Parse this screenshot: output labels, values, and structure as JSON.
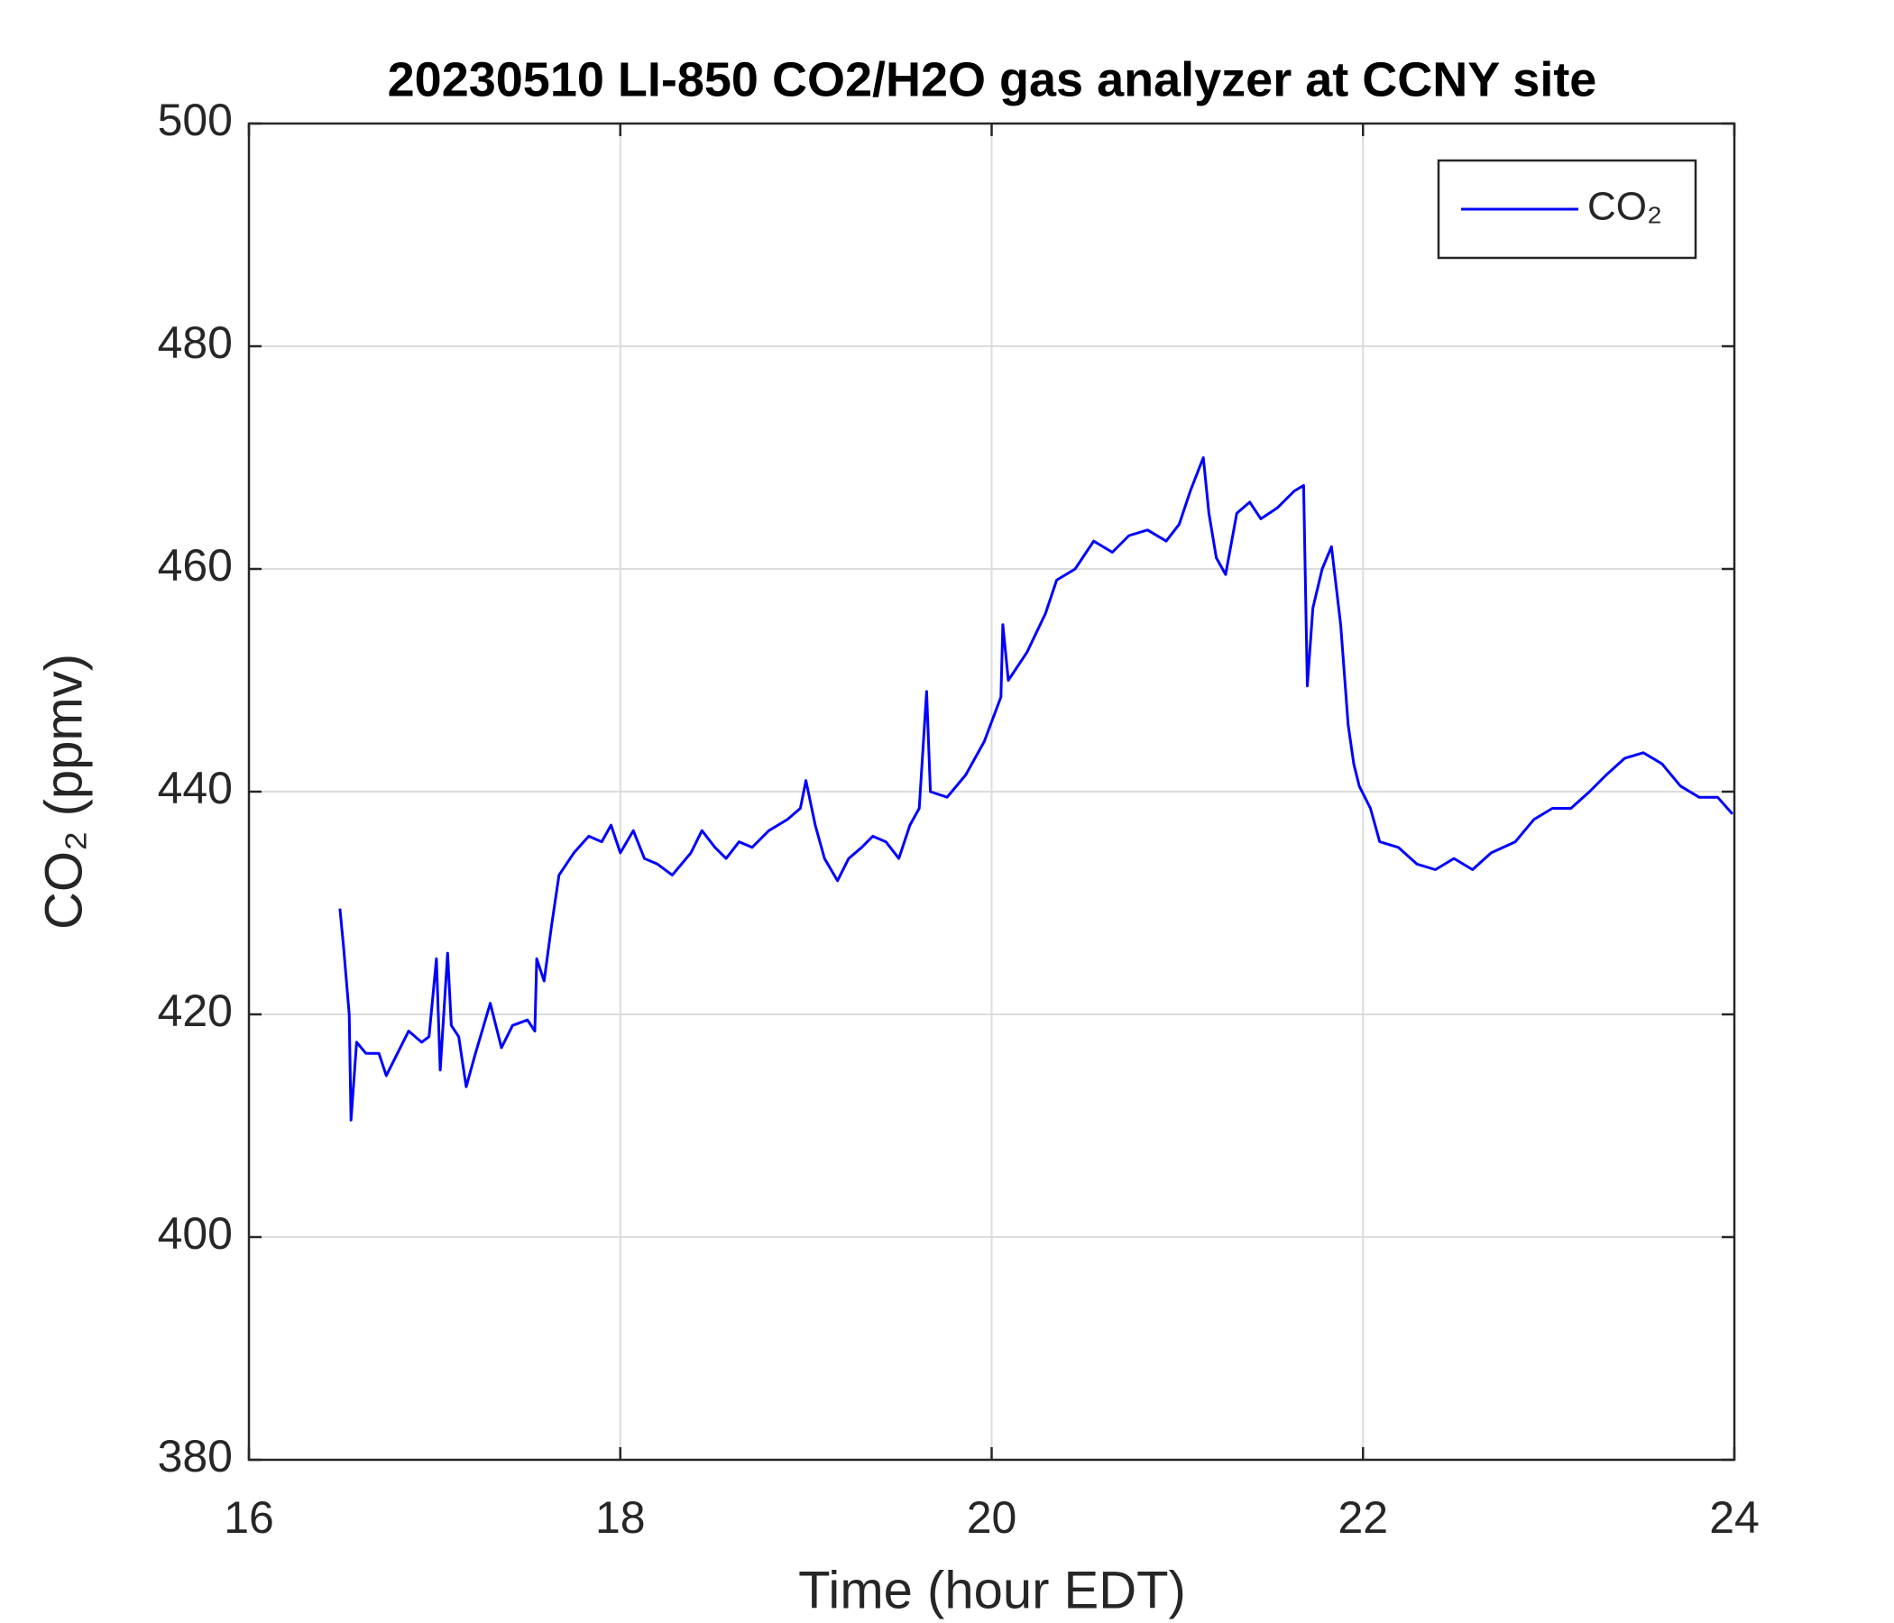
{
  "chart_data": {
    "type": "line",
    "title": "20230510 LI-850 CO2/H2O gas analyzer at CCNY site",
    "x_label": "Time (hour EDT)",
    "y_label": "CO₂ (ppmv)",
    "x": [
      16.49,
      16.51,
      16.54,
      16.55,
      16.58,
      16.63,
      16.7,
      16.74,
      16.8,
      16.86,
      16.93,
      16.97,
      17.01,
      17.03,
      17.07,
      17.09,
      17.13,
      17.17,
      17.22,
      17.3,
      17.36,
      17.42,
      17.5,
      17.54,
      17.55,
      17.59,
      17.63,
      17.67,
      17.75,
      17.83,
      17.9,
      17.95,
      18.0,
      18.07,
      18.13,
      18.2,
      18.28,
      18.38,
      18.44,
      18.51,
      18.57,
      18.64,
      18.71,
      18.8,
      18.9,
      18.97,
      19.0,
      19.05,
      19.1,
      19.17,
      19.23,
      19.3,
      19.36,
      19.43,
      19.5,
      19.56,
      19.61,
      19.65,
      19.67,
      19.76,
      19.86,
      19.96,
      20.05,
      20.06,
      20.09,
      20.19,
      20.29,
      20.35,
      20.45,
      20.55,
      20.65,
      20.74,
      20.84,
      20.94,
      21.01,
      21.07,
      21.14,
      21.17,
      21.21,
      21.26,
      21.32,
      21.39,
      21.45,
      21.54,
      21.63,
      21.68,
      21.7,
      21.73,
      21.78,
      21.83,
      21.88,
      21.92,
      21.95,
      21.98,
      22.04,
      22.09,
      22.19,
      22.29,
      22.39,
      22.49,
      22.59,
      22.69,
      22.82,
      22.92,
      23.02,
      23.12,
      23.22,
      23.31,
      23.41,
      23.51,
      23.61,
      23.71,
      23.81,
      23.91,
      23.99
    ],
    "series": [
      {
        "name": "CO₂",
        "color": "#0000ff",
        "values": [
          429.5,
          426,
          420,
          410.5,
          417.5,
          416.5,
          416.5,
          414.5,
          416.5,
          418.5,
          417.5,
          418,
          425,
          415,
          425.5,
          419,
          418,
          413.5,
          416.5,
          421,
          417,
          419,
          419.5,
          418.5,
          425,
          423,
          428,
          432.5,
          434.5,
          436,
          435.5,
          437,
          434.5,
          436.5,
          434,
          433.5,
          432.5,
          434.5,
          436.5,
          435,
          434,
          435.5,
          435,
          436.5,
          437.5,
          438.5,
          441,
          437,
          434,
          432,
          434,
          435,
          436,
          435.5,
          434,
          437,
          438.5,
          449,
          440,
          439.5,
          441.5,
          444.5,
          448.5,
          455,
          450,
          452.5,
          456,
          459,
          460,
          462.5,
          461.5,
          463,
          463.5,
          462.5,
          464,
          467,
          470,
          465,
          461,
          459.5,
          465,
          466,
          464.5,
          465.5,
          467,
          467.5,
          449.5,
          456.5,
          460,
          462,
          455,
          446,
          442.5,
          440.5,
          438.5,
          435.5,
          435,
          433.5,
          433,
          434,
          433,
          434.5,
          435.5,
          437.5,
          438.5,
          438.5,
          440,
          441.5,
          443,
          443.5,
          442.5,
          440.5,
          439.5,
          439.5,
          438
        ]
      }
    ],
    "xlim": [
      16,
      24
    ],
    "xticks": [
      16,
      18,
      20,
      22,
      24
    ],
    "ylim": [
      380,
      500
    ],
    "yticks": [
      380,
      400,
      420,
      440,
      460,
      480,
      500
    ],
    "grid": true,
    "legend": "upper right"
  }
}
